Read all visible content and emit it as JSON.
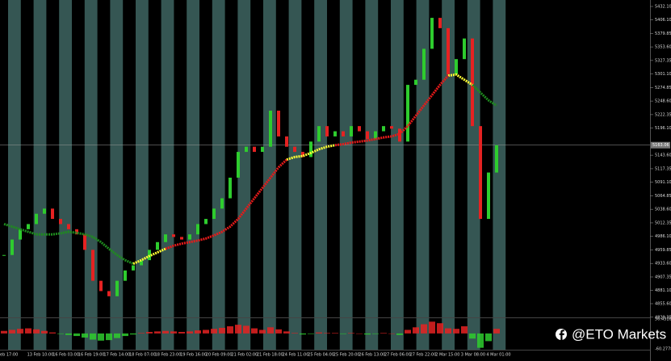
{
  "chart_data": {
    "type": "candlestick",
    "closes": [
      4950,
      4980,
      5000,
      5010,
      5030,
      5040,
      5020,
      5010,
      5000,
      4990,
      4960,
      4900,
      4880,
      4870,
      4900,
      4920,
      4930,
      4940,
      4960,
      4975,
      4990,
      4985,
      4980,
      4990,
      5010,
      5020,
      5040,
      5060,
      5100,
      5150,
      5160,
      5150,
      5160,
      5230,
      5180,
      5160,
      5150,
      5140,
      5170,
      5200,
      5180,
      5190,
      5180,
      5200,
      5190,
      5175,
      5190,
      5200,
      5195,
      5170,
      5280,
      5290,
      5350,
      5410,
      5390,
      5300,
      5330,
      5370,
      5200,
      5020,
      5110,
      5163.06
    ],
    "series": [
      {
        "name": "MA green",
        "color": "#1e8c1e",
        "values": [
          5010,
          5005,
          5000,
          4995,
          4990,
          4990,
          4990,
          4992,
          4995,
          4993,
          4990,
          4985,
          4975,
          4962,
          4950,
          4940,
          4933,
          null,
          null,
          null,
          null,
          null,
          null,
          null,
          null,
          null,
          null,
          null,
          null,
          null,
          null,
          null,
          null,
          null,
          null,
          null,
          null,
          null,
          null,
          null,
          null,
          null,
          null,
          null,
          null,
          null,
          null,
          null,
          null,
          null,
          null,
          null,
          null,
          null,
          null,
          null,
          null,
          null,
          5280,
          5265,
          5250,
          5240
        ]
      },
      {
        "name": "MA yellow",
        "color": "#ffff33",
        "values": [
          null,
          null,
          null,
          null,
          null,
          null,
          null,
          null,
          null,
          null,
          null,
          null,
          null,
          null,
          null,
          null,
          4933,
          4940,
          4948,
          4955,
          4962,
          null,
          null,
          null,
          null,
          null,
          null,
          null,
          null,
          null,
          null,
          null,
          null,
          null,
          null,
          5135,
          5140,
          5142,
          5148,
          5155,
          5160,
          5163,
          null,
          null,
          null,
          null,
          null,
          null,
          null,
          null,
          null,
          null,
          null,
          null,
          null,
          5298,
          5300,
          5290,
          5280,
          null,
          null,
          null
        ]
      },
      {
        "name": "MA red",
        "color": "#e51a1a",
        "values": [
          null,
          null,
          null,
          null,
          null,
          null,
          null,
          null,
          null,
          null,
          null,
          null,
          null,
          null,
          null,
          null,
          null,
          null,
          null,
          null,
          4962,
          4968,
          4972,
          4975,
          4978,
          4982,
          4988,
          4995,
          5005,
          5020,
          5040,
          5060,
          5080,
          5100,
          5120,
          5135,
          null,
          null,
          null,
          null,
          null,
          5163,
          5165,
          5168,
          5170,
          5172,
          5175,
          5178,
          5180,
          5185,
          5200,
          5220,
          5240,
          5260,
          5280,
          5298,
          null,
          null,
          null,
          null,
          null,
          null
        ]
      }
    ],
    "ylim": [
      4855.6,
      5432.1
    ],
    "yticks": [
      {
        "value": 5432.1,
        "label": "5432.10"
      },
      {
        "value": 5406.1,
        "label": "5406.10"
      },
      {
        "value": 5379.85,
        "label": "5379.85"
      },
      {
        "value": 5353.6,
        "label": "5353.60"
      },
      {
        "value": 5327.35,
        "label": "5327.35"
      },
      {
        "value": 5301.1,
        "label": "5301.10"
      },
      {
        "value": 5274.85,
        "label": "5274.85"
      },
      {
        "value": 5248.6,
        "label": "5248.60"
      },
      {
        "value": 5222.35,
        "label": "5222.35"
      },
      {
        "value": 5196.1,
        "label": "5196.10"
      },
      {
        "value": 5143.6,
        "label": "5143.60"
      },
      {
        "value": 5117.35,
        "label": "5117.35"
      },
      {
        "value": 5091.1,
        "label": "5091.10"
      },
      {
        "value": 5064.85,
        "label": "5064.85"
      },
      {
        "value": 5038.6,
        "label": "5038.60"
      },
      {
        "value": 5012.35,
        "label": "5012.35"
      },
      {
        "value": 4986.1,
        "label": "4986.10"
      },
      {
        "value": 4959.85,
        "label": "4959.85"
      },
      {
        "value": 4933.6,
        "label": "4933.60"
      },
      {
        "value": 4907.35,
        "label": "4907.35"
      },
      {
        "value": 4881.1,
        "label": "4881.10"
      },
      {
        "value": 4855.6,
        "label": "4855.60"
      },
      {
        "value": 4829.35,
        "label": "4829.35"
      }
    ],
    "current_price": {
      "value": 5163.06,
      "label": "5163.06"
    },
    "x_labels": [
      "eb 17:00",
      "13 Feb 10:00",
      "16 Feb 03:00",
      "16 Feb 19:00",
      "17 Feb 14:00",
      "18 Feb 07:00",
      "18 Feb 23:00",
      "19 Feb 16:00",
      "20 Feb 09:00",
      "21 Feb 02:00",
      "21 Feb 18:00",
      "24 Feb 11:00",
      "25 Feb 04:00",
      "25 Feb 20:00",
      "26 Feb 13:00",
      "27 Feb 06:00",
      "27 Feb 22:00",
      "2 Mar 15:00",
      "3 Mar 08:00",
      "4 Mar 01:00"
    ],
    "indicator": {
      "values": [
        10,
        14,
        18,
        20,
        16,
        10,
        4,
        -2,
        -6,
        -10,
        -16,
        -24,
        -28,
        -26,
        -18,
        -10,
        -4,
        2,
        6,
        8,
        10,
        8,
        6,
        8,
        12,
        14,
        18,
        22,
        28,
        34,
        30,
        20,
        14,
        24,
        16,
        8,
        2,
        -4,
        -2,
        4,
        2,
        2,
        -2,
        2,
        0,
        -4,
        -2,
        2,
        0,
        -6,
        14,
        24,
        36,
        46,
        40,
        20,
        18,
        28,
        -20,
        -56,
        -30,
        18
      ],
      "ylim": [
        -60.2778,
        56.4316
      ],
      "yticks": [
        {
          "value": 56.4316,
          "label": "56.4316"
        },
        {
          "value": -60.2778,
          "label": "-60.2778"
        }
      ]
    },
    "watermark": "@ETO Markets"
  }
}
